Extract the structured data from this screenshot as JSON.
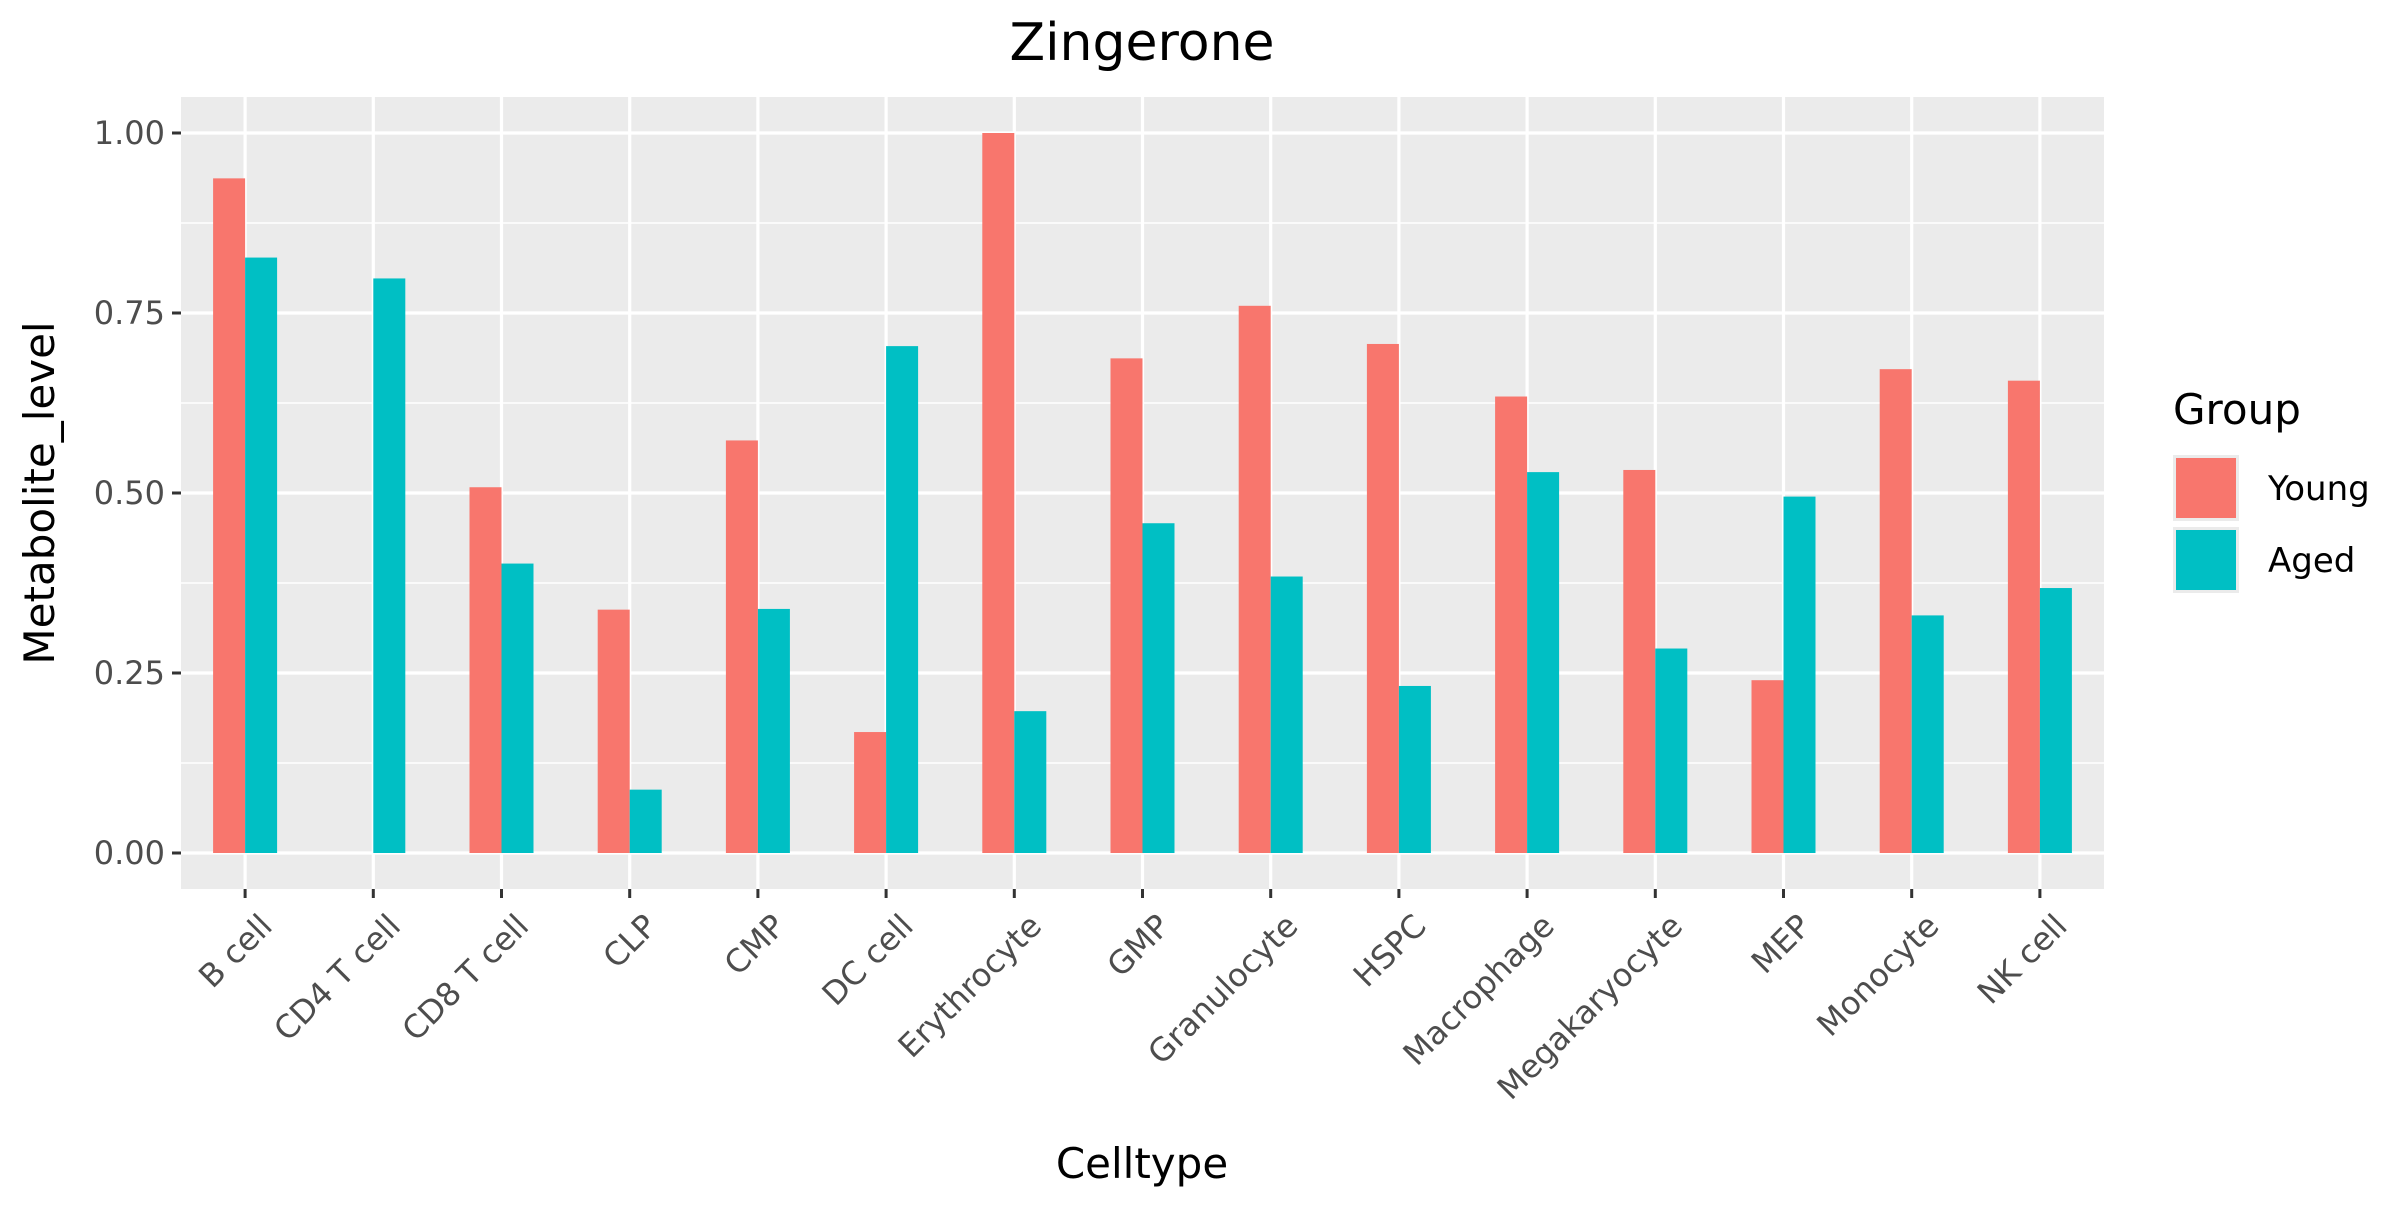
{
  "chart_data": {
    "type": "bar",
    "title": "Zingerone",
    "xlabel": "Celltype",
    "ylabel": "Metabolite_level",
    "ylim": [
      -0.05,
      1.05
    ],
    "yticks": [
      0,
      0.25,
      0.5,
      0.75,
      1.0
    ],
    "ytick_labels": [
      "0.00",
      "0.25",
      "0.50",
      "0.75",
      "1.00"
    ],
    "grid": true,
    "legend": {
      "title": "Group",
      "position": "right"
    },
    "categories": [
      "B cell",
      "CD4 T cell",
      "CD8 T cell",
      "CLP",
      "CMP",
      "DC cell",
      "Erythrocyte",
      "GMP",
      "Granulocyte",
      "HSPC",
      "Macrophage",
      "Megakaryocyte",
      "MEP",
      "Monocyte",
      "NK cell"
    ],
    "series": [
      {
        "name": "Young",
        "color": "#F8766D",
        "values": [
          0.937,
          0.0,
          0.508,
          0.338,
          0.573,
          0.168,
          1.0,
          0.687,
          0.76,
          0.707,
          0.634,
          0.532,
          0.24,
          0.672,
          0.656
        ]
      },
      {
        "name": "Aged",
        "color": "#00BFC4",
        "values": [
          0.827,
          0.798,
          0.402,
          0.088,
          0.339,
          0.704,
          0.197,
          0.458,
          0.384,
          0.232,
          0.529,
          0.284,
          0.495,
          0.33,
          0.368
        ]
      }
    ]
  }
}
